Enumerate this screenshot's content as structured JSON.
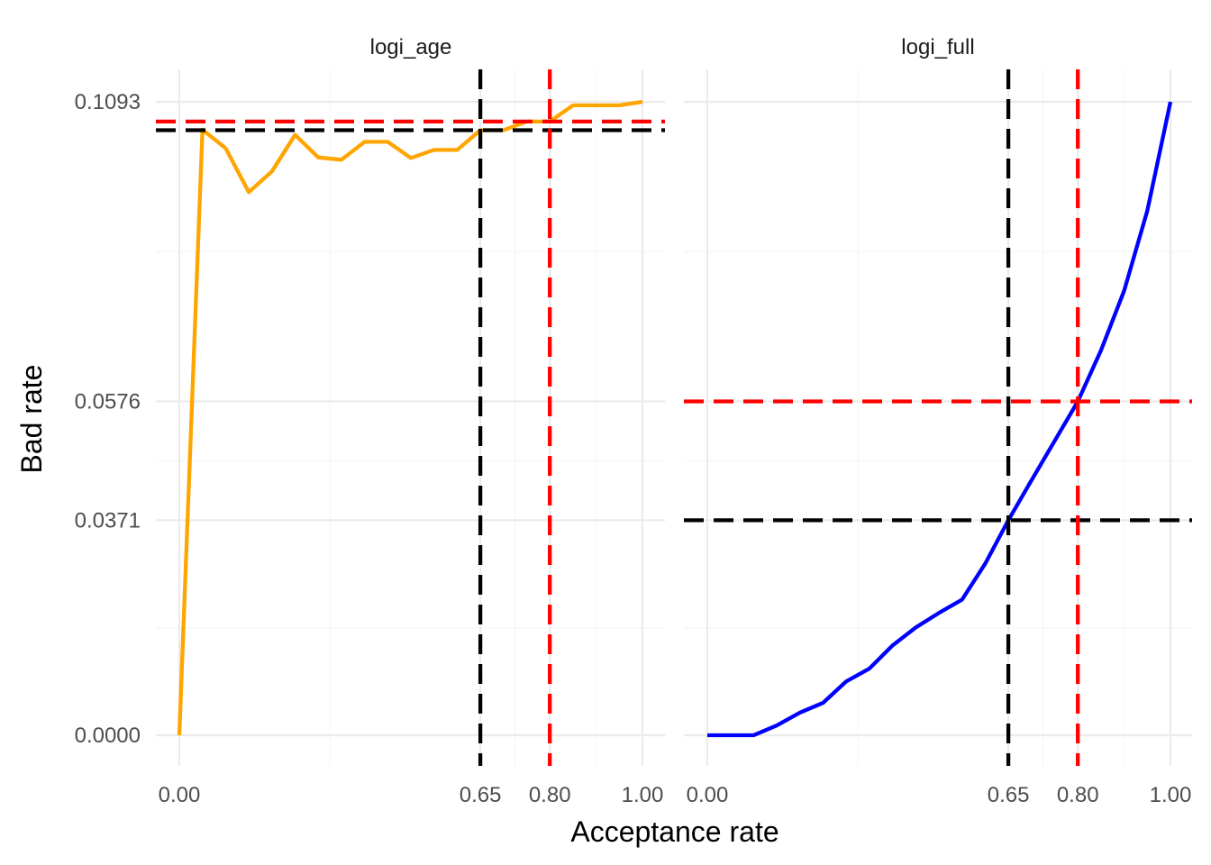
{
  "chart_data": {
    "type": "line",
    "xlabel": "Acceptance rate",
    "ylabel": "Bad rate",
    "xlim": [
      0,
      1
    ],
    "ylim": [
      0,
      0.1093
    ],
    "grid": true,
    "legend": "none",
    "colors": {
      "cutoff_black": "#000000",
      "cutoff_red": "#ff0000"
    },
    "panels": [
      {
        "title": "logi_age",
        "line_color": "#ffa500",
        "x_ticks": [
          "0.00",
          "0.65",
          "0.80",
          "1.00"
        ],
        "y_ticks": [
          "0.0000",
          "0.1093"
        ],
        "x_tick_values": [
          0,
          0.65,
          0.8,
          1.0
        ],
        "y_tick_values": [
          0.0,
          0.1093
        ],
        "cutoffs": {
          "x_black": 0.65,
          "x_red": 0.8,
          "y_black": 0.1044,
          "y_red": 0.1059
        },
        "x": [
          0,
          0.05,
          0.1,
          0.15,
          0.2,
          0.25,
          0.3,
          0.35,
          0.4,
          0.45,
          0.5,
          0.55,
          0.6,
          0.65,
          0.7,
          0.75,
          0.8,
          0.85,
          0.9,
          0.95,
          1.0
        ],
        "y": [
          0.0,
          0.1045,
          0.1013,
          0.0937,
          0.0973,
          0.1036,
          0.0997,
          0.0993,
          0.1024,
          0.1024,
          0.0996,
          0.101,
          0.101,
          0.1044,
          0.1044,
          0.1059,
          0.1059,
          0.1087,
          0.1087,
          0.1087,
          0.1093
        ]
      },
      {
        "title": "logi_full",
        "line_color": "#0000ff",
        "x_ticks": [
          "0.00",
          "0.65",
          "0.80",
          "1.00"
        ],
        "y_ticks": [
          "0.0371",
          "0.0576"
        ],
        "x_tick_values": [
          0,
          0.65,
          0.8,
          1.0
        ],
        "y_tick_values": [
          0.0371,
          0.0576
        ],
        "cutoffs": {
          "x_black": 0.65,
          "x_red": 0.8,
          "y_black": 0.0371,
          "y_red": 0.0576
        },
        "x": [
          0,
          0.05,
          0.1,
          0.15,
          0.2,
          0.25,
          0.3,
          0.35,
          0.4,
          0.45,
          0.5,
          0.55,
          0.6,
          0.65,
          0.7,
          0.75,
          0.8,
          0.85,
          0.9,
          0.95,
          1.0
        ],
        "y": [
          0.0,
          0.0,
          0.0,
          0.0017,
          0.0039,
          0.0056,
          0.0093,
          0.0115,
          0.0155,
          0.0186,
          0.0211,
          0.0234,
          0.0296,
          0.0371,
          0.044,
          0.0508,
          0.0576,
          0.0664,
          0.0767,
          0.0905,
          0.1093
        ]
      }
    ]
  }
}
